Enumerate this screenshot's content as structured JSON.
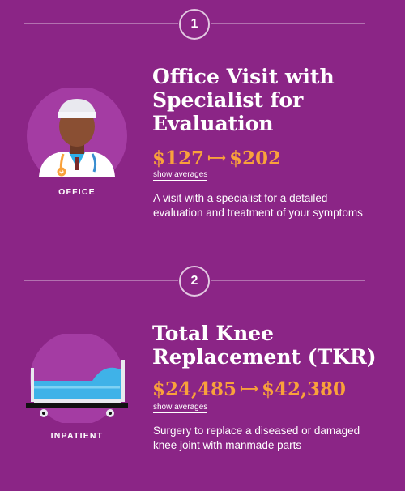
{
  "cards": [
    {
      "step": "1",
      "category": "OFFICE",
      "title": "Office Visit with Specialist for Evaluation",
      "price_low": "$127",
      "price_high": "$202",
      "averages_link": "show averages",
      "description": "A visit with a specialist for a detailed evaluation and treatment of your symptoms",
      "icon": "doctor-illustration"
    },
    {
      "step": "2",
      "category": "INPATIENT",
      "title": "Total Knee Replacement (TKR)",
      "price_low": "$24,485",
      "price_high": "$42,380",
      "averages_link": "show averages",
      "description": "Surgery to replace a diseased or damaged knee joint with manmade parts",
      "icon": "hospital-bed-illustration"
    }
  ],
  "colors": {
    "background": "#8b2586",
    "circle": "#a43ca3",
    "price": "#f9a13b"
  }
}
